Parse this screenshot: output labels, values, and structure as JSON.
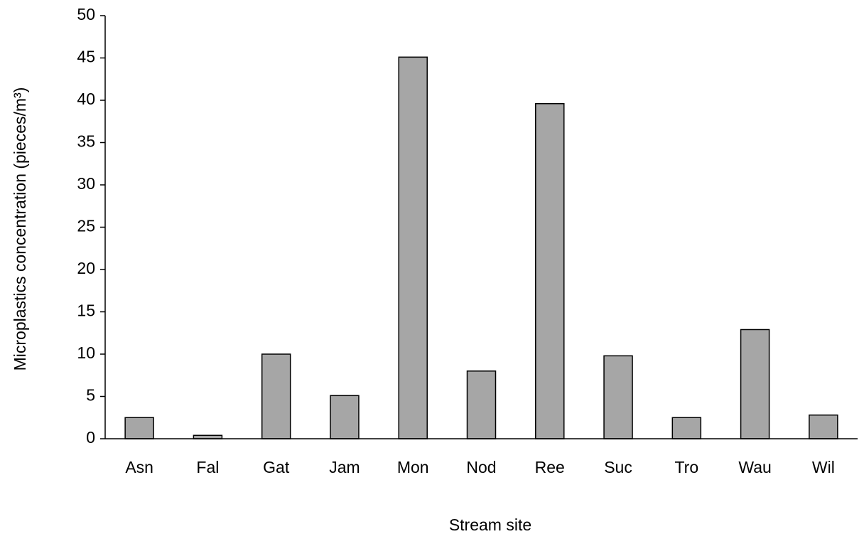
{
  "chart_data": {
    "type": "bar",
    "x_label": "Stream site",
    "y_label": "Microplastics concentration (pieces/m³)",
    "categories": [
      "Asn",
      "Fal",
      "Gat",
      "Jam",
      "Mon",
      "Nod",
      "Ree",
      "Suc",
      "Tro",
      "Wau",
      "Wil"
    ],
    "values": [
      2.5,
      0.4,
      10.0,
      5.1,
      45.1,
      8.0,
      39.6,
      9.8,
      2.5,
      12.9,
      2.8
    ],
    "color": "#a6a6a6",
    "ylim": [
      0,
      50
    ],
    "yticks": [
      0,
      5,
      10,
      15,
      20,
      25,
      30,
      35,
      40,
      45,
      50
    ],
    "grid": false
  }
}
